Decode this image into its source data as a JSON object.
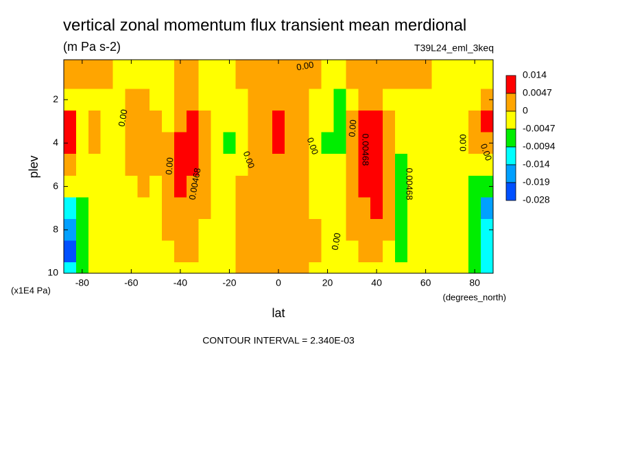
{
  "chart_data": {
    "type": "contour",
    "title": "vertical zonal momentum flux transient mean merdional",
    "subtitle": "(m Pa s-2)",
    "dataset": "T39L24_eml_3keq",
    "x_label": "lat",
    "x_units": "(degrees_north)",
    "y_label": "plev",
    "y_units": "(x1E4 Pa)",
    "footer": "CONTOUR INTERVAL = 2.340E-03",
    "xlim": [
      -87.5,
      87.5
    ],
    "xticks": [
      -80,
      -60,
      -40,
      -20,
      0,
      20,
      40,
      60,
      80
    ],
    "ylim": [
      10,
      0.16
    ],
    "y_inverted": true,
    "yticks": [
      2,
      4,
      6,
      8,
      10
    ],
    "levels": [
      0.014,
      0.0047,
      0,
      -0.0047,
      -0.0094,
      -0.014,
      -0.019,
      -0.028
    ],
    "colors": [
      "#ff0000",
      "#ffa500",
      "#ffff00",
      "#00ee00",
      "#00ffff",
      "#00a0ff",
      "#0050ff"
    ],
    "contour_labels": [
      "0.00",
      "0.00",
      "0.00",
      "0.00",
      "0.00",
      "0.00",
      "0.00",
      "0.00",
      "0.00",
      "0.00468",
      "0.00468",
      "0.00468"
    ],
    "lat": [
      -85,
      -80,
      -75,
      -70,
      -65,
      -60,
      -55,
      -50,
      -45,
      -40,
      -35,
      -30,
      -25,
      -20,
      -15,
      -10,
      -5,
      0,
      5,
      10,
      15,
      20,
      25,
      30,
      35,
      40,
      45,
      50,
      55,
      60,
      65,
      70,
      75,
      80,
      85
    ],
    "plev": [
      1,
      2,
      3,
      4,
      5,
      6,
      7,
      8,
      9,
      10
    ],
    "z": [
      [
        0.002,
        0.002,
        0.002,
        0.002,
        -0.002,
        -0.002,
        -0.002,
        -0.002,
        -0.002,
        0.002,
        0.002,
        -0.002,
        -0.002,
        -0.002,
        0.002,
        0.002,
        0.002,
        0.002,
        0.002,
        0.002,
        0.002,
        -0.002,
        -0.002,
        0.002,
        0.002,
        0.002,
        0.002,
        0.002,
        0.002,
        0.002,
        -0.002,
        -0.002,
        -0.002,
        -0.002,
        -0.002
      ],
      [
        -0.002,
        -0.002,
        -0.002,
        -0.002,
        -0.002,
        0.002,
        0.002,
        -0.002,
        -0.002,
        0.002,
        0.002,
        -0.002,
        -0.002,
        -0.002,
        -0.002,
        0.002,
        0.002,
        0.002,
        0.002,
        0.002,
        -0.002,
        -0.002,
        -0.006,
        -0.002,
        0.002,
        0.002,
        -0.002,
        -0.002,
        -0.002,
        -0.002,
        -0.002,
        -0.002,
        -0.002,
        -0.002,
        0.002
      ],
      [
        0.008,
        -0.002,
        0.002,
        -0.002,
        -0.002,
        0.002,
        0.002,
        0.002,
        -0.002,
        0.002,
        0.008,
        0.002,
        -0.002,
        -0.002,
        -0.002,
        0.002,
        0.002,
        0.008,
        0.002,
        0.002,
        -0.002,
        -0.002,
        -0.006,
        0.002,
        0.008,
        0.008,
        0.002,
        -0.002,
        -0.002,
        -0.002,
        -0.002,
        -0.002,
        -0.002,
        0.002,
        0.008
      ],
      [
        0.008,
        -0.002,
        0.002,
        -0.002,
        -0.002,
        0.002,
        0.002,
        0.002,
        0.002,
        0.008,
        0.008,
        0.002,
        -0.002,
        -0.006,
        -0.002,
        0.002,
        0.002,
        0.008,
        0.002,
        0.002,
        -0.002,
        -0.006,
        -0.006,
        0.002,
        0.008,
        0.008,
        0.002,
        -0.002,
        -0.002,
        -0.002,
        -0.002,
        -0.002,
        -0.002,
        0.002,
        0.002
      ],
      [
        0.002,
        -0.002,
        -0.002,
        -0.002,
        -0.002,
        0.002,
        0.002,
        0.002,
        0.002,
        0.008,
        0.008,
        0.002,
        -0.002,
        -0.002,
        -0.002,
        0.002,
        0.002,
        0.002,
        0.002,
        0.002,
        -0.002,
        -0.002,
        -0.002,
        0.002,
        0.008,
        0.008,
        0.002,
        -0.006,
        -0.002,
        -0.002,
        -0.002,
        -0.002,
        -0.002,
        -0.002,
        -0.002
      ],
      [
        -0.002,
        -0.002,
        -0.002,
        -0.002,
        -0.002,
        -0.002,
        0.002,
        -0.002,
        0.002,
        0.008,
        0.002,
        0.002,
        -0.002,
        -0.002,
        0.002,
        0.002,
        0.002,
        0.002,
        0.002,
        0.002,
        -0.002,
        -0.002,
        -0.002,
        0.002,
        0.008,
        0.008,
        0.002,
        -0.006,
        -0.002,
        -0.002,
        -0.002,
        -0.002,
        -0.002,
        -0.006,
        -0.006
      ],
      [
        -0.011,
        -0.006,
        -0.002,
        -0.002,
        -0.002,
        -0.002,
        -0.002,
        -0.002,
        0.002,
        0.002,
        0.002,
        0.002,
        -0.002,
        -0.002,
        0.002,
        0.002,
        0.002,
        0.002,
        0.002,
        0.002,
        -0.002,
        -0.002,
        -0.002,
        0.002,
        0.002,
        0.008,
        0.002,
        -0.006,
        -0.002,
        -0.002,
        -0.002,
        -0.002,
        -0.002,
        -0.006,
        -0.016
      ],
      [
        -0.016,
        -0.006,
        -0.002,
        -0.002,
        -0.002,
        -0.002,
        -0.002,
        -0.002,
        0.002,
        0.002,
        0.002,
        -0.002,
        -0.002,
        -0.002,
        0.002,
        0.002,
        0.002,
        0.002,
        0.002,
        0.002,
        0.002,
        -0.002,
        -0.002,
        0.002,
        0.002,
        0.002,
        0.002,
        -0.006,
        -0.002,
        -0.002,
        -0.002,
        -0.002,
        -0.002,
        -0.006,
        -0.011
      ],
      [
        -0.022,
        -0.006,
        -0.002,
        -0.002,
        -0.002,
        -0.002,
        -0.002,
        -0.002,
        -0.002,
        0.002,
        0.002,
        -0.002,
        -0.002,
        -0.002,
        0.002,
        0.002,
        0.002,
        0.002,
        0.002,
        0.002,
        0.002,
        -0.002,
        -0.002,
        -0.002,
        0.002,
        0.002,
        -0.002,
        -0.006,
        -0.002,
        -0.002,
        -0.002,
        -0.002,
        -0.002,
        -0.006,
        -0.011
      ],
      [
        -0.011,
        -0.006,
        -0.002,
        -0.002,
        -0.002,
        -0.002,
        -0.002,
        -0.002,
        -0.002,
        -0.002,
        -0.002,
        -0.002,
        -0.002,
        -0.002,
        0.002,
        0.002,
        0.002,
        0.002,
        0.002,
        0.002,
        -0.002,
        -0.002,
        -0.002,
        -0.002,
        -0.002,
        -0.002,
        -0.002,
        -0.002,
        -0.002,
        -0.002,
        -0.002,
        -0.002,
        -0.002,
        -0.006,
        -0.011
      ]
    ]
  }
}
